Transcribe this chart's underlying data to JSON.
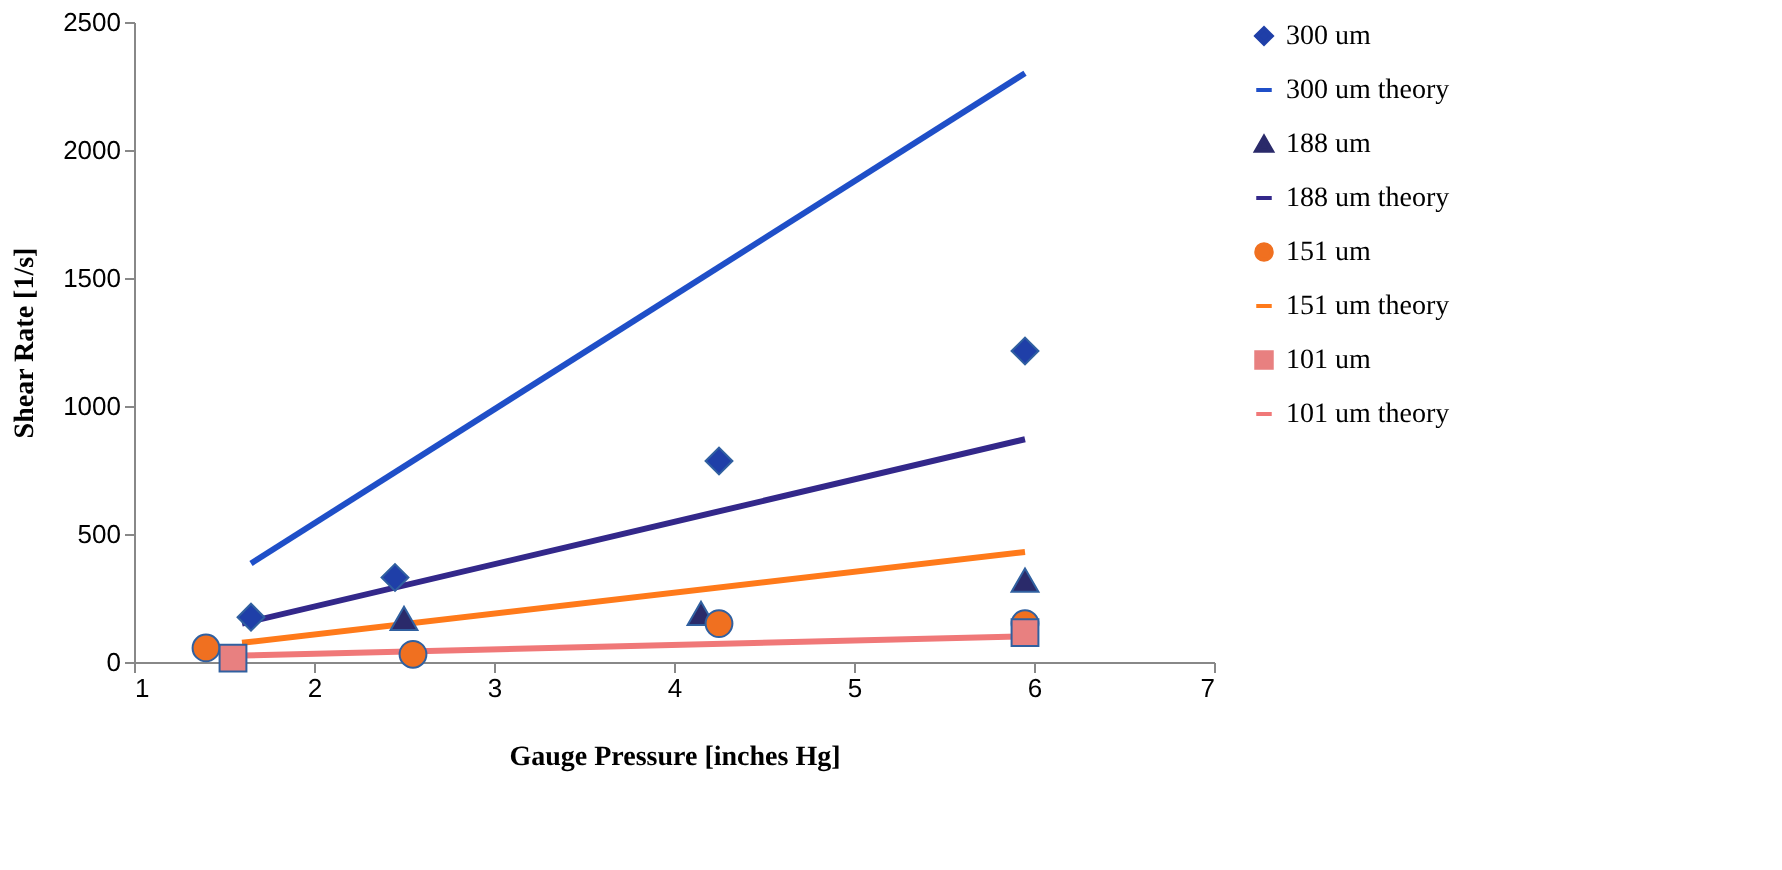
{
  "chart_data": {
    "type": "scatter",
    "xlabel": "Gauge Pressure [inches Hg]",
    "ylabel": "Shear Rate [1/s]",
    "xlim": [
      1,
      7
    ],
    "xticks": [
      1,
      2,
      3,
      4,
      5,
      6,
      7
    ],
    "ylim": [
      0,
      2500
    ],
    "yticks": [
      0,
      500,
      1000,
      1500,
      2000,
      2500
    ],
    "grid": false,
    "legend": "right",
    "series": [
      {
        "name": "300 um",
        "marker": "diamond",
        "color": "#1f3fa8",
        "x": [
          1.65,
          2.45,
          4.25,
          5.95
        ],
        "values": [
          175,
          330,
          785,
          1215
        ]
      },
      {
        "name": "300 um theory",
        "type": "line",
        "color": "#1f4fc8",
        "x": [
          1.65,
          5.95
        ],
        "values": [
          385,
          2300
        ]
      },
      {
        "name": "188 um",
        "marker": "triangle",
        "color": "#2a2a6a",
        "x": [
          2.5,
          4.15,
          5.95
        ],
        "values": [
          170,
          190,
          320
        ]
      },
      {
        "name": "188 um theory",
        "type": "line",
        "color": "#33288a",
        "x": [
          1.6,
          5.95
        ],
        "values": [
          150,
          870
        ]
      },
      {
        "name": "151 um",
        "marker": "circle",
        "color": "#f07020",
        "x": [
          1.4,
          2.55,
          4.25,
          5.95
        ],
        "values": [
          55,
          30,
          150,
          150
        ]
      },
      {
        "name": "151 um theory",
        "type": "line",
        "color": "#ff7a1a",
        "x": [
          1.6,
          5.95
        ],
        "values": [
          75,
          430
        ]
      },
      {
        "name": "101 um",
        "marker": "square",
        "color": "#e88080",
        "x": [
          1.55,
          5.95
        ],
        "values": [
          15,
          115
        ]
      },
      {
        "name": "101 um theory",
        "type": "line",
        "color": "#f07878",
        "x": [
          1.6,
          5.95
        ],
        "values": [
          25,
          100
        ]
      }
    ]
  }
}
